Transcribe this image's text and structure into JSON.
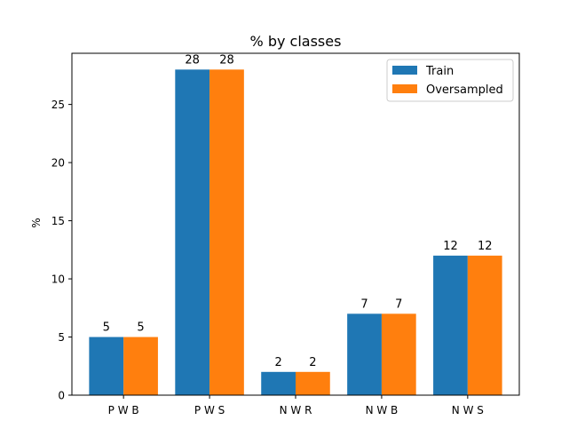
{
  "chart_data": {
    "type": "bar",
    "title": "% by classes",
    "xlabel": "",
    "ylabel": "%",
    "categories": [
      "P W B",
      "P W S",
      "N W R",
      "N W B",
      "N W S"
    ],
    "series": [
      {
        "name": "Train",
        "values": [
          5,
          28,
          2,
          7,
          12
        ],
        "color": "#1f77b4"
      },
      {
        "name": "Oversampled",
        "values": [
          5,
          28,
          2,
          7,
          12
        ],
        "color": "#ff7f0e"
      }
    ],
    "ylim": [
      0,
      29.4
    ],
    "yticks": [
      0,
      5,
      10,
      15,
      20,
      25
    ],
    "grid": false,
    "legend_position": "top-right",
    "data_labels": true
  }
}
